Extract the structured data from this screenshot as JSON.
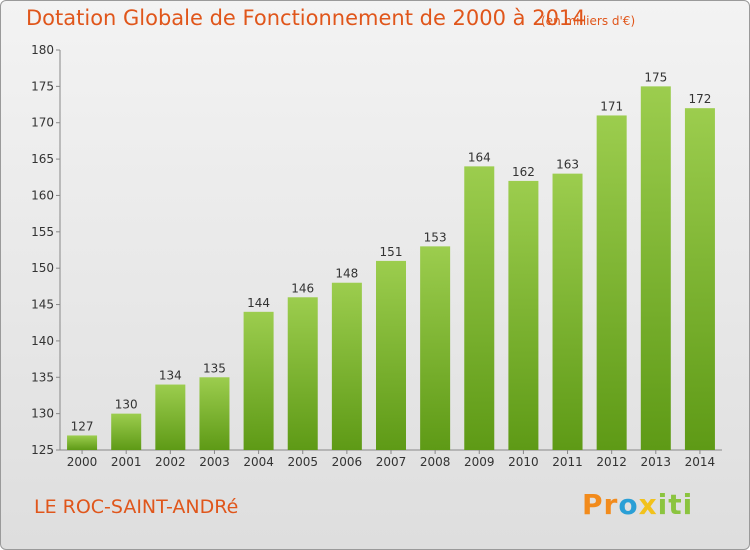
{
  "header": {
    "title": "Dotation Globale de Fonctionnement de 2000 à 2014",
    "subtitle": "(en milliers d'€)"
  },
  "footer": {
    "commune": "LE ROC-SAINT-ANDRé",
    "logo_letters": [
      "Pr",
      "o",
      "x",
      "iti"
    ]
  },
  "colors": {
    "bar_light": "#9ccd4e",
    "bar_dark": "#5e9a16",
    "accent": "#e0561b"
  },
  "chart_data": {
    "type": "bar",
    "title": "Dotation Globale de Fonctionnement de 2000 à 2014",
    "subtitle": "(en milliers d'€)",
    "categories": [
      "2000",
      "2001",
      "2002",
      "2003",
      "2004",
      "2005",
      "2006",
      "2007",
      "2008",
      "2009",
      "2010",
      "2011",
      "2012",
      "2013",
      "2014"
    ],
    "values": [
      127,
      130,
      134,
      135,
      144,
      146,
      148,
      151,
      153,
      164,
      162,
      163,
      171,
      175,
      172
    ],
    "ylim": [
      125,
      180
    ],
    "yticks": [
      125,
      130,
      135,
      140,
      145,
      150,
      155,
      160,
      165,
      170,
      175,
      180
    ],
    "grid": false,
    "data_labels": true
  }
}
